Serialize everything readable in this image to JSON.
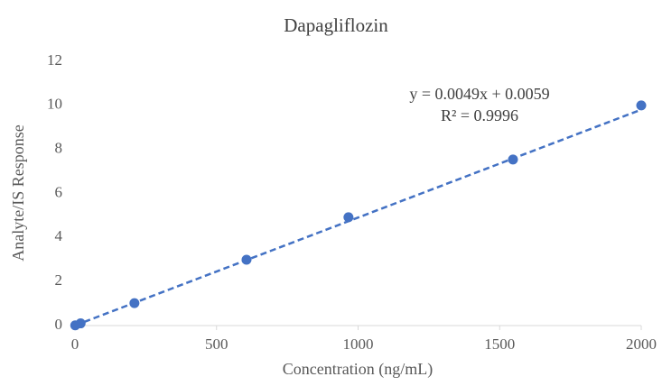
{
  "chart_data": {
    "type": "scatter",
    "title": "Dapagliflozin",
    "x_label": "Concentration (ng/mL)",
    "y_label": "Analyte/IS Response",
    "series": [
      {
        "name": "Dapagliflozin",
        "color": "#4472c4",
        "x": [
          1,
          20,
          210,
          606,
          966,
          1547,
          2000
        ],
        "values": [
          0.01,
          0.1,
          1.02,
          2.99,
          4.92,
          7.54,
          10.0
        ]
      }
    ],
    "trendline": {
      "slope": 0.0049,
      "intercept": 0.0059,
      "color": "#4472c4",
      "equation_label": "y = 0.0049x + 0.0059",
      "r2_label": "R² = 0.9996"
    },
    "xlim": [
      0,
      2000
    ],
    "xticks": [
      0,
      500,
      1000,
      1500,
      2000
    ],
    "ylim": [
      0,
      12
    ],
    "yticks": [
      0,
      2,
      4,
      6,
      8,
      10,
      12
    ],
    "grid": false
  }
}
